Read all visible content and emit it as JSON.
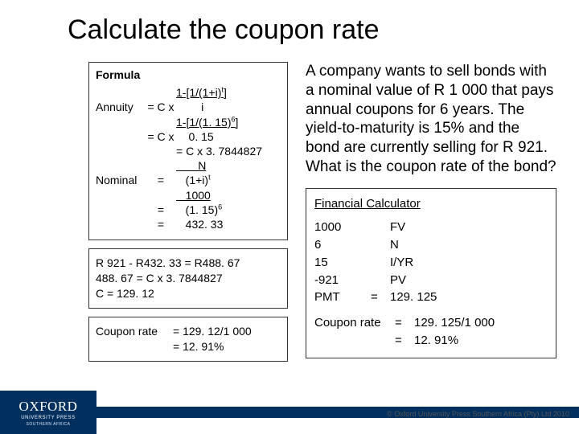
{
  "colors": {
    "text": "#000000",
    "border": "#333333",
    "background": "#ffffff",
    "brand_bg": "#012f5e",
    "brand_fg": "#ffffff",
    "copyright": "#555555"
  },
  "title": "Calculate the coupon rate",
  "formula": {
    "header": "Formula",
    "rows": [
      {
        "c1": "",
        "c2": "",
        "c3_u": "1-[1/(1+i)",
        "c3_supu": "t",
        "c3_after": "]"
      },
      {
        "c1": "Annuity",
        "c2": "= C x",
        "c3": "        i"
      },
      {
        "c1": "",
        "c2": "",
        "c3_u": "1-[1/(1. 15)",
        "c3_supu": "6",
        "c3_after": "]"
      },
      {
        "c1": "",
        "c2": "= C x",
        "c3": "    0. 15"
      },
      {
        "c1": "",
        "c2": "",
        "c3": "= C x 3. 7844827"
      },
      {
        "c1": "",
        "c2": "",
        "c3_u": "       N"
      },
      {
        "c1": "Nominal",
        "c2": "=",
        "c3": "   (1+i)",
        "c3_sup": "t"
      },
      {
        "c1": "",
        "c2": "",
        "c3_u": "   1000"
      },
      {
        "c1": "",
        "c2": "=",
        "c3": "   (1. 15)",
        "c3_sup": "6"
      },
      {
        "c1": "",
        "c2": "=",
        "c3": "   432. 33"
      }
    ]
  },
  "working": {
    "lines": [
      "R 921  - R432. 33 = R488. 67",
      "488. 67  = C x 3. 7844827",
      "C = 129. 12"
    ]
  },
  "coupon_result": {
    "label": "Coupon rate",
    "lines": [
      "= 129. 12/1 000",
      "= 12. 91%"
    ]
  },
  "problem": "A company wants to sell bonds with a nominal value of R 1 000 that pays annual coupons for 6 years. The yield-to-maturity is 15% and the bond are currently selling for R 921. What is the coupon rate of the bond?",
  "fincalc": {
    "header": "Financial Calculator",
    "rows": [
      {
        "a": "1000",
        "b": "",
        "c": "FV"
      },
      {
        "a": "6",
        "b": "",
        "c": "N"
      },
      {
        "a": "15",
        "b": "",
        "c": "I/YR"
      },
      {
        "a": "-921",
        "b": "",
        "c": "PV"
      },
      {
        "a": "PMT",
        "b": "=",
        "c": "129. 125"
      }
    ],
    "result_rows": [
      {
        "a": "Coupon rate",
        "b": "=",
        "c": "129. 125/1 000"
      },
      {
        "a": "",
        "b": "=",
        "c": "12. 91%"
      }
    ]
  },
  "footer": {
    "brand_main": "OXFORD",
    "brand_sub": "UNIVERSITY PRESS",
    "brand_region": "SOUTHERN AFRICA",
    "copyright": "© Oxford University Press Southern Africa (Pty) Ltd 2010"
  }
}
